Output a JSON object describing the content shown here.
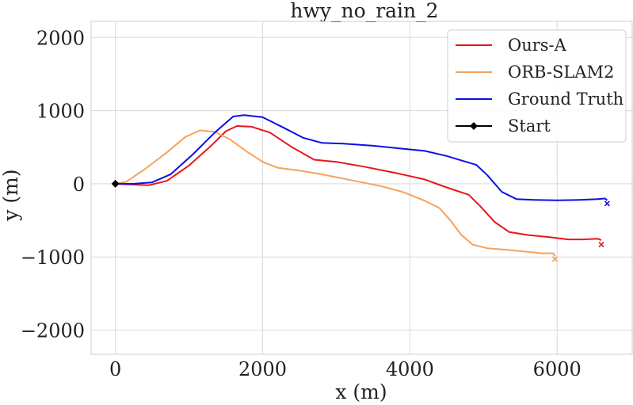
{
  "chart_data": {
    "type": "line",
    "title": "hwy_no_rain_2",
    "xlabel": "x (m)",
    "ylabel": "y (m)",
    "xlim": [
      -330,
      7020
    ],
    "ylim": [
      -2330,
      2220
    ],
    "xticks": [
      0,
      2000,
      4000,
      6000
    ],
    "xtick_labels": [
      "0",
      "2000",
      "4000",
      "6000"
    ],
    "yticks": [
      -2000,
      -1000,
      0,
      1000,
      2000
    ],
    "ytick_labels": [
      "−2000",
      "−1000",
      "0",
      "1000",
      "2000"
    ],
    "grid": true,
    "legend_position": "top-right",
    "series": [
      {
        "name": "Ours-A",
        "color": "#e8161b",
        "points": [
          [
            0,
            0
          ],
          [
            200,
            -10
          ],
          [
            450,
            -20
          ],
          [
            700,
            40
          ],
          [
            1000,
            250
          ],
          [
            1300,
            520
          ],
          [
            1500,
            720
          ],
          [
            1650,
            790
          ],
          [
            1850,
            780
          ],
          [
            2100,
            700
          ],
          [
            2400,
            500
          ],
          [
            2700,
            330
          ],
          [
            3000,
            300
          ],
          [
            3400,
            230
          ],
          [
            3800,
            150
          ],
          [
            4200,
            60
          ],
          [
            4500,
            -50
          ],
          [
            4800,
            -150
          ],
          [
            4950,
            -300
          ],
          [
            5150,
            -520
          ],
          [
            5350,
            -660
          ],
          [
            5600,
            -700
          ],
          [
            5900,
            -730
          ],
          [
            6150,
            -760
          ],
          [
            6350,
            -760
          ],
          [
            6550,
            -750
          ],
          [
            6600,
            -770
          ]
        ],
        "end": [
          6600,
          -830
        ]
      },
      {
        "name": "ORB-SLAM2",
        "color": "#f4a25e",
        "points": [
          [
            0,
            0
          ],
          [
            150,
            30
          ],
          [
            400,
            200
          ],
          [
            700,
            430
          ],
          [
            950,
            640
          ],
          [
            1150,
            730
          ],
          [
            1350,
            710
          ],
          [
            1550,
            610
          ],
          [
            1800,
            430
          ],
          [
            2000,
            300
          ],
          [
            2200,
            220
          ],
          [
            2500,
            180
          ],
          [
            2800,
            130
          ],
          [
            3200,
            50
          ],
          [
            3600,
            -30
          ],
          [
            3900,
            -110
          ],
          [
            4200,
            -230
          ],
          [
            4400,
            -330
          ],
          [
            4550,
            -500
          ],
          [
            4700,
            -700
          ],
          [
            4850,
            -830
          ],
          [
            5050,
            -880
          ],
          [
            5300,
            -900
          ],
          [
            5600,
            -930
          ],
          [
            5800,
            -950
          ],
          [
            5950,
            -950
          ],
          [
            5970,
            -990
          ]
        ],
        "end": [
          5970,
          -1030
        ]
      },
      {
        "name": "Ground Truth",
        "color": "#0c10e4",
        "points": [
          [
            0,
            0
          ],
          [
            250,
            0
          ],
          [
            500,
            20
          ],
          [
            750,
            130
          ],
          [
            1050,
            400
          ],
          [
            1350,
            700
          ],
          [
            1600,
            920
          ],
          [
            1750,
            940
          ],
          [
            2000,
            910
          ],
          [
            2300,
            760
          ],
          [
            2550,
            630
          ],
          [
            2800,
            560
          ],
          [
            3100,
            550
          ],
          [
            3500,
            520
          ],
          [
            3900,
            480
          ],
          [
            4200,
            450
          ],
          [
            4500,
            380
          ],
          [
            4700,
            320
          ],
          [
            4900,
            260
          ],
          [
            5050,
            120
          ],
          [
            5250,
            -110
          ],
          [
            5450,
            -210
          ],
          [
            5700,
            -220
          ],
          [
            6000,
            -225
          ],
          [
            6300,
            -220
          ],
          [
            6550,
            -210
          ],
          [
            6650,
            -200
          ],
          [
            6680,
            -225
          ]
        ],
        "end": [
          6680,
          -270
        ]
      },
      {
        "name": "Start",
        "color": "#000000",
        "marker": "diamond",
        "points": [
          [
            0,
            0
          ]
        ]
      }
    ]
  }
}
